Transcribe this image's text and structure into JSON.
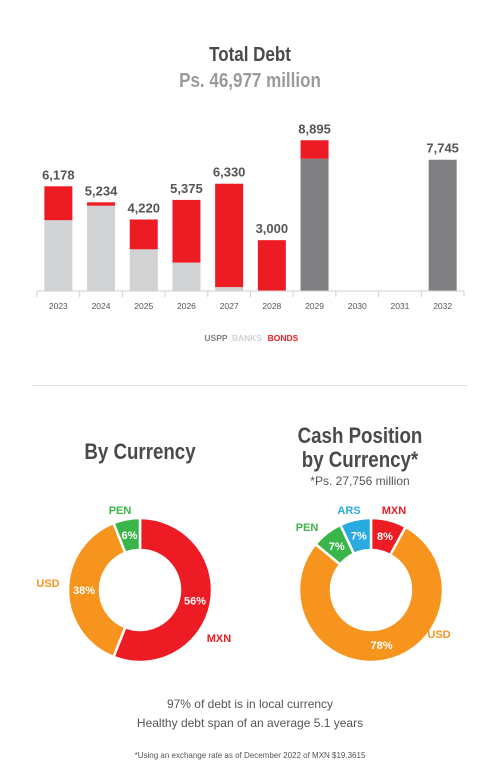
{
  "header": {
    "title": "Total Debt",
    "subtitle": "Ps. 46,977 million"
  },
  "colors": {
    "uspp": "#808083",
    "banks": "#d1d2d4",
    "bonds": "#ed1c24",
    "usd": "#f7941d",
    "pen": "#3ab54a",
    "ars": "#29abe2",
    "mxn": "#ed1c24",
    "label_gray": "#555555"
  },
  "chart_data": [
    {
      "type": "bar",
      "stacked": true,
      "categories": [
        "2023",
        "2024",
        "2025",
        "2026",
        "2027",
        "2028",
        "2029",
        "2030",
        "2031",
        "2032"
      ],
      "totals_labels": [
        "6,178",
        "5,234",
        "4,220",
        "5,375",
        "6,330",
        "3,000",
        "8,895",
        "",
        "",
        "7,745"
      ],
      "series": [
        {
          "name": "USPP",
          "color": "#808083",
          "values": [
            0,
            0,
            0,
            0,
            0,
            0,
            7805,
            0,
            0,
            7745
          ]
        },
        {
          "name": "BANKS",
          "color": "#d1d2d4",
          "values": [
            4178,
            5034,
            2460,
            1675,
            230,
            0,
            0,
            0,
            0,
            0
          ]
        },
        {
          "name": "BONDS",
          "color": "#ed1c24",
          "values": [
            2000,
            200,
            1760,
            3700,
            6100,
            3000,
            1090,
            0,
            0,
            0
          ]
        }
      ],
      "ylim": [
        0,
        9500
      ],
      "legend_position": "bottom-center"
    },
    {
      "type": "pie",
      "title": "By Currency",
      "labels": [
        "MXN",
        "USD",
        "PEN"
      ],
      "values": [
        56,
        38,
        6
      ],
      "value_labels": [
        "56%",
        "38%",
        "6%"
      ],
      "colors": [
        "#ed1c24",
        "#f7941d",
        "#3ab54a"
      ]
    },
    {
      "type": "pie",
      "title": "Cash Position by Currency*",
      "subtitle": "*Ps. 27,756 million",
      "labels": [
        "MXN",
        "USD",
        "PEN",
        "ARS"
      ],
      "values": [
        8,
        78,
        7,
        7
      ],
      "value_labels": [
        "8%",
        "78%",
        "7%",
        "7%"
      ],
      "colors": [
        "#ed1c24",
        "#f7941d",
        "#3ab54a",
        "#29abe2"
      ]
    }
  ],
  "currency": {
    "title": "By Currency"
  },
  "cash": {
    "title_line1": "Cash Position",
    "title_line2": "by Currency*",
    "subtitle": "*Ps. 27,756 million"
  },
  "footer": {
    "line1": "97% of debt is in local currency",
    "line2": "Healthy debt span of an average 5.1 years",
    "note": "*Using an exchange rate as of December 2022 of MXN $19.3615"
  }
}
